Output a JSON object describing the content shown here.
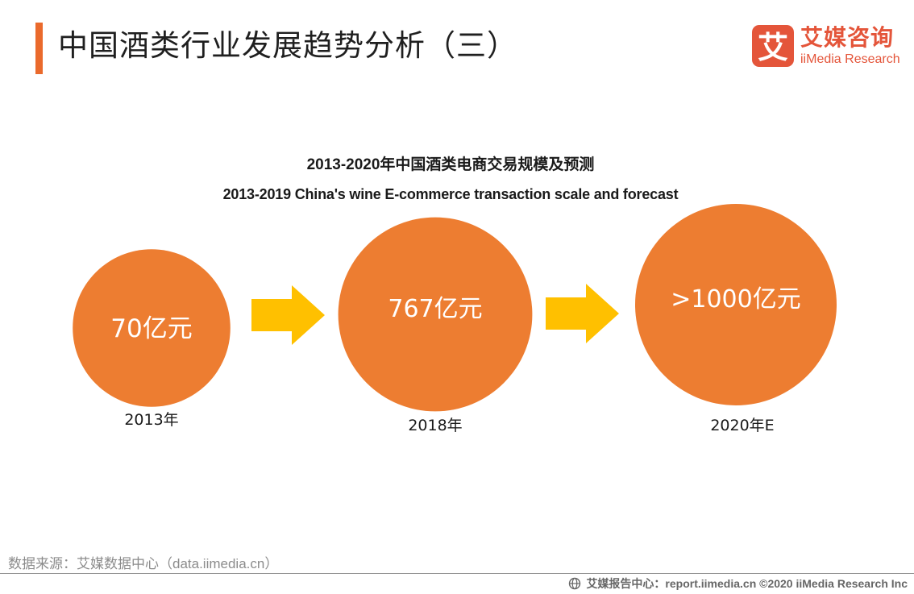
{
  "page_title": "中国酒类行业发展趋势分析（三）",
  "logo": {
    "mark_char": "艾",
    "cn": "艾媒咨询",
    "en": "iiMedia Research"
  },
  "colors": {
    "accent": "#ea6a2c",
    "circle": "#ed7d31",
    "arrow": "#ffc000",
    "logo": "#e4553a"
  },
  "chart_data": {
    "type": "bubble-flow",
    "title": "2013-2020年中国酒类电商交易规模及预测",
    "subtitle": "2013-2019 China's wine E-commerce transaction scale and forecast",
    "unit": "亿元",
    "categories": [
      "2013年",
      "2018年",
      "2020年E"
    ],
    "values": [
      70,
      767,
      1000
    ],
    "value_labels": [
      "70亿元",
      "767亿元",
      ">1000亿元"
    ],
    "connectors": [
      "arrow",
      "arrow"
    ]
  },
  "source": "数据来源：艾媒数据中心（data.iimedia.cn）",
  "footer": {
    "text": "艾媒报告中心：report.iimedia.cn  ©2020  iiMedia Research  Inc"
  }
}
